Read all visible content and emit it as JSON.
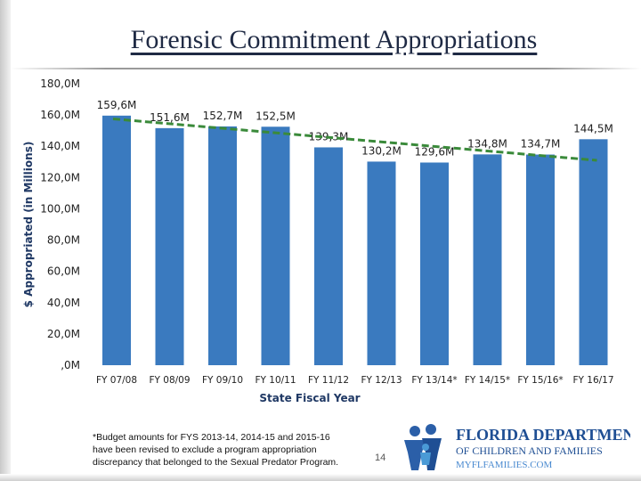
{
  "title": "Forensic Commitment Appropriations",
  "chart_data": {
    "type": "bar",
    "categories": [
      "FY 07/08",
      "FY 08/09",
      "FY 09/10",
      "FY 10/11",
      "FY 11/12",
      "FY 12/13",
      "FY 13/14*",
      "FY 14/15*",
      "FY 15/16*",
      "FY 16/17"
    ],
    "values": [
      159.6,
      151.6,
      152.7,
      152.5,
      139.3,
      130.2,
      129.6,
      134.8,
      134.7,
      144.5
    ],
    "data_labels": [
      "159,6M",
      "151,6M",
      "152,7M",
      "152,5M",
      "139,3M",
      "130,2M",
      "129,6M",
      "134,8M",
      "134,7M",
      "144,5M"
    ],
    "xlabel": "State Fiscal Year",
    "ylabel": "$ Appropriated (in Millions)",
    "ylim": [
      0,
      180
    ],
    "yticks": [
      ",0M",
      "20,0M",
      "40,0M",
      "60,0M",
      "80,0M",
      "100,0M",
      "120,0M",
      "140,0M",
      "160,0M",
      "180,0M"
    ],
    "trendline": {
      "style": "dashed",
      "color": "#3a8a3a",
      "start": 157.5,
      "end": 131.0
    },
    "bar_color": "#3a7abf",
    "grid": false
  },
  "footnote": "*Budget amounts for FYS 2013-14, 2014-15 and 2015-16 have been revised to exclude a program appropriation discrepancy that belonged to the Sexual Predator Program.",
  "page_number": "14",
  "logo": {
    "line1": "FLORIDA DEPARTMENT",
    "line2": "OF CHILDREN AND FAMILIES",
    "line3": "MYFLFAMILIES.COM"
  }
}
